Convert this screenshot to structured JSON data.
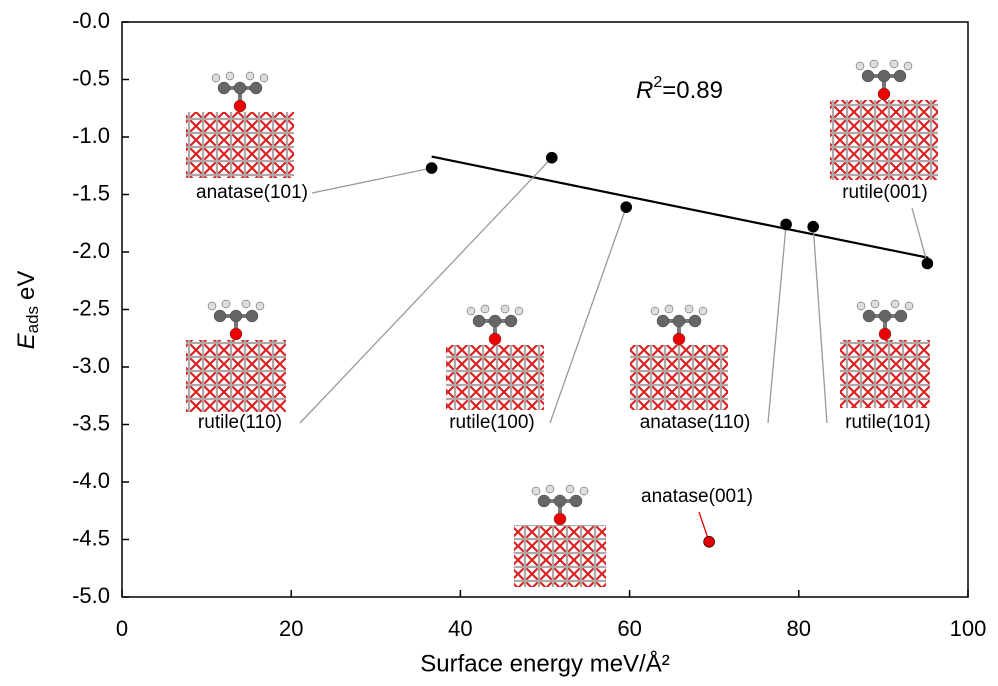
{
  "chart_data": {
    "type": "scatter",
    "x_label": "Surface energy meV/Å²",
    "y_label": {
      "symbol": "E",
      "subscript": "ads",
      "unit": "eV"
    },
    "annotation": {
      "symbol": "R",
      "superscript": "2",
      "text": "=0.89"
    },
    "xlim": [
      0,
      100
    ],
    "ylim": [
      -5,
      0
    ],
    "xticks": [
      0,
      20,
      40,
      60,
      80,
      100
    ],
    "yticks": [
      {
        "value": 0,
        "label": "-0.0"
      },
      -0.5,
      {
        "value": -1,
        "label": "-1.0"
      },
      -1.5,
      {
        "value": -2,
        "label": "-2.0"
      },
      -2.5,
      {
        "value": -3,
        "label": "-3.0"
      },
      -3.5,
      {
        "value": -4,
        "label": "-4.0"
      },
      -4.5,
      {
        "value": -5,
        "label": "-5.0"
      }
    ],
    "points": [
      {
        "label": "anatase(101)",
        "x": 36.6,
        "y": -1.27,
        "color": "#000000"
      },
      {
        "label": "rutile(110)",
        "x": 50.8,
        "y": -1.18,
        "color": "#000000"
      },
      {
        "label": "rutile(100)",
        "x": 59.6,
        "y": -1.61,
        "color": "#000000"
      },
      {
        "label": "anatase(110)",
        "x": 78.5,
        "y": -1.76,
        "color": "#000000"
      },
      {
        "label": "rutile(101)",
        "x": 81.7,
        "y": -1.78,
        "color": "#000000"
      },
      {
        "label": "rutile(001)",
        "x": 95.2,
        "y": -2.1,
        "color": "#000000"
      },
      {
        "label": "anatase(001)",
        "x": 69.4,
        "y": -4.52,
        "color": "#e00000"
      }
    ],
    "fit": {
      "x": [
        36.6,
        95.3
      ],
      "y": [
        -1.17,
        -2.05
      ],
      "color": "#000000"
    }
  }
}
